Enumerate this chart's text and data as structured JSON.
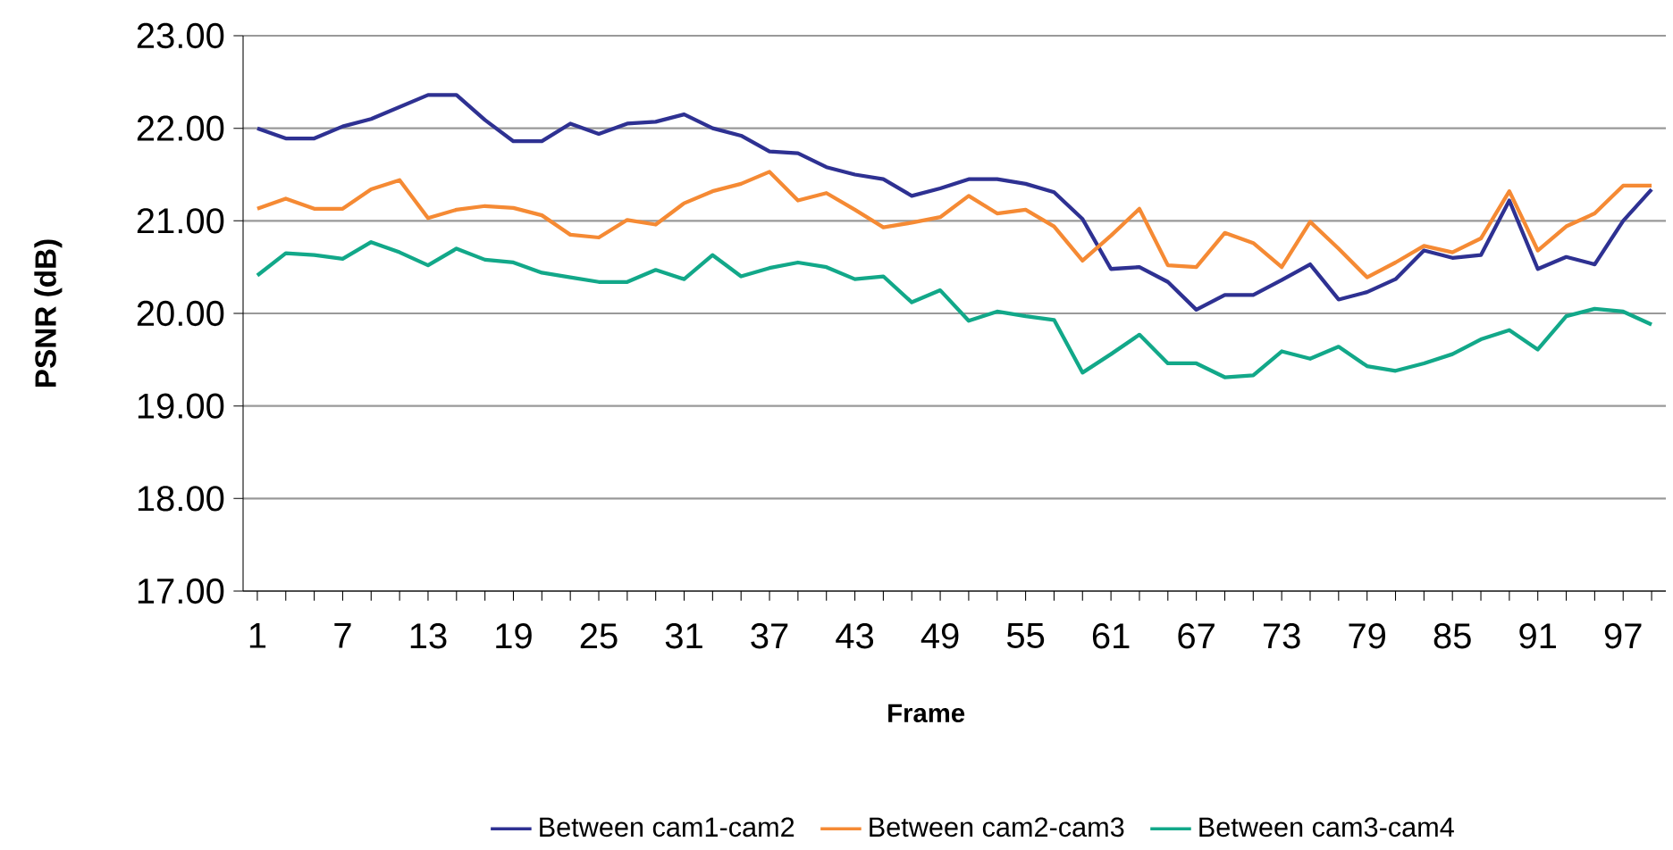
{
  "chart_data": {
    "type": "line",
    "xlabel": "Frame",
    "ylabel": "PSNR (dB)",
    "categories": [
      "1",
      null,
      null,
      "7",
      null,
      null,
      "13",
      null,
      null,
      "19",
      null,
      null,
      "25",
      null,
      null,
      "31",
      null,
      null,
      "37",
      null,
      null,
      "43",
      null,
      null,
      "49",
      null,
      null,
      "55",
      null,
      null,
      "61",
      null,
      null,
      "67",
      null,
      null,
      "73",
      null,
      null,
      "79",
      null,
      null,
      "85",
      null,
      null,
      "91",
      null,
      null,
      "97",
      null
    ],
    "series": [
      {
        "name": "Between cam1-cam2",
        "color": "#2e3192",
        "values": [
          22.0,
          21.89,
          21.89,
          22.02,
          22.1,
          22.23,
          22.36,
          22.36,
          22.09,
          21.86,
          21.86,
          22.05,
          21.94,
          22.05,
          22.07,
          22.15,
          22.0,
          21.92,
          21.75,
          21.73,
          21.58,
          21.5,
          21.45,
          21.27,
          21.35,
          21.45,
          21.45,
          21.4,
          21.31,
          21.02,
          20.48,
          20.5,
          20.34,
          20.04,
          20.2,
          20.2,
          20.36,
          20.53,
          20.15,
          20.23,
          20.37,
          20.68,
          20.6,
          20.63,
          21.22,
          20.48,
          20.61,
          20.53,
          21.0,
          21.34
        ]
      },
      {
        "name": "Between cam2-cam3",
        "color": "#f58a34",
        "values": [
          21.13,
          21.24,
          21.13,
          21.13,
          21.34,
          21.44,
          21.03,
          21.12,
          21.16,
          21.14,
          21.06,
          20.85,
          20.82,
          21.01,
          20.96,
          21.19,
          21.32,
          21.4,
          21.53,
          21.22,
          21.3,
          21.12,
          20.93,
          20.98,
          21.04,
          21.27,
          21.08,
          21.12,
          20.94,
          20.57,
          20.84,
          21.13,
          20.52,
          20.5,
          20.87,
          20.76,
          20.5,
          20.99,
          20.7,
          20.39,
          20.55,
          20.73,
          20.66,
          20.81,
          21.32,
          20.68,
          20.94,
          21.08,
          21.38,
          21.38
        ]
      },
      {
        "name": "Between cam3-cam4",
        "color": "#12a889",
        "values": [
          20.41,
          20.65,
          20.63,
          20.59,
          20.77,
          20.66,
          20.52,
          20.7,
          20.58,
          20.55,
          20.44,
          20.39,
          20.34,
          20.34,
          20.47,
          20.37,
          20.63,
          20.4,
          20.49,
          20.55,
          20.5,
          20.37,
          20.4,
          20.12,
          20.25,
          19.92,
          20.02,
          19.97,
          19.93,
          19.36,
          19.56,
          19.77,
          19.46,
          19.46,
          19.31,
          19.33,
          19.59,
          19.51,
          19.64,
          19.43,
          19.38,
          19.46,
          19.56,
          19.72,
          19.82,
          19.61,
          19.97,
          20.05,
          20.02,
          19.88
        ]
      }
    ],
    "ylim": [
      17,
      23
    ],
    "yticks": [
      {
        "value": 17,
        "label": "17.00"
      },
      {
        "value": 18,
        "label": "18.00"
      },
      {
        "value": 19,
        "label": "19.00"
      },
      {
        "value": 20,
        "label": "20.00"
      },
      {
        "value": 21,
        "label": "21.00"
      },
      {
        "value": 22,
        "label": "22.00"
      },
      {
        "value": 23,
        "label": "23.00"
      }
    ],
    "grid": "y",
    "legend": "bottom"
  }
}
